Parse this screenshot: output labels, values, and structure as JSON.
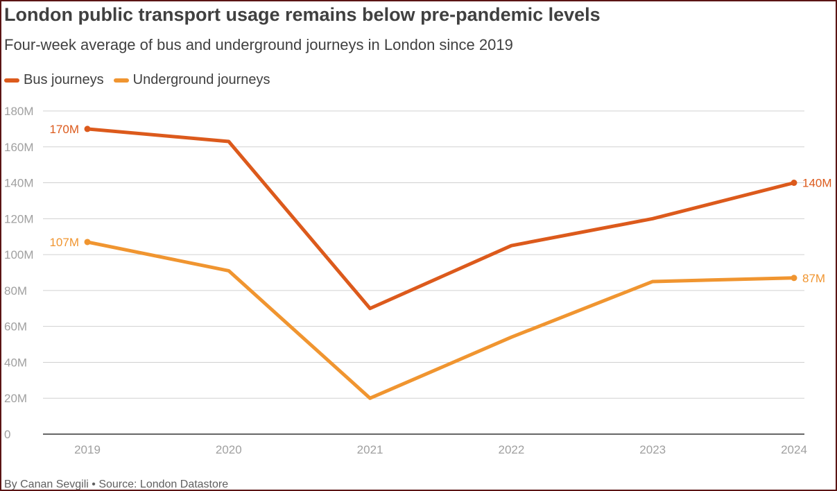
{
  "chart_data": {
    "type": "line",
    "title": "London public transport usage remains below pre-pandemic levels",
    "subtitle": "Four-week average of bus and underground journeys in London since 2019",
    "x": [
      "2019",
      "2020",
      "2021",
      "2022",
      "2023",
      "2024"
    ],
    "series": [
      {
        "name": "Bus journeys",
        "color": "#dc5a1c",
        "values": [
          170,
          163,
          70,
          105,
          120,
          140
        ],
        "start_label": "170M",
        "end_label": "140M"
      },
      {
        "name": "Underground journeys",
        "color": "#f09530",
        "values": [
          107,
          91,
          20,
          54,
          85,
          87
        ],
        "start_label": "107M",
        "end_label": "87M"
      }
    ],
    "ylim": [
      0,
      180
    ],
    "yticks": [
      0,
      20,
      40,
      60,
      80,
      100,
      120,
      140,
      160,
      180
    ],
    "ytick_labels": [
      "0",
      "20M",
      "40M",
      "60M",
      "80M",
      "100M",
      "120M",
      "140M",
      "160M",
      "180M"
    ],
    "grid": true,
    "legend_position": "top-left",
    "xlabel": "",
    "ylabel": ""
  },
  "footer": "By Canan Sevgili • Source: London Datastore"
}
